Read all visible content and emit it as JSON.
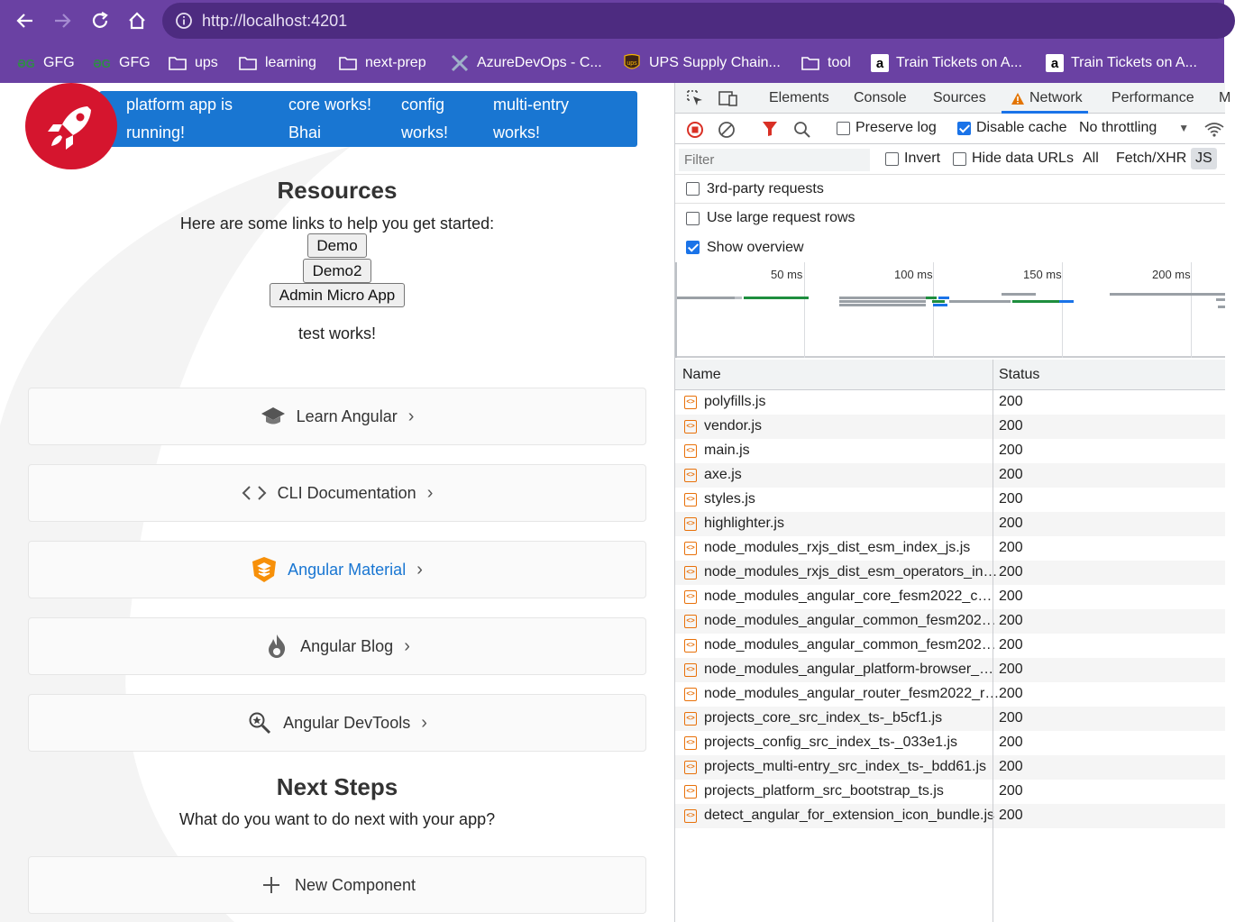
{
  "browser": {
    "url": "http://localhost:4201",
    "bookmarks": [
      {
        "label": "GFG",
        "icon": "gfg-icon"
      },
      {
        "label": "GFG",
        "icon": "gfg-icon"
      },
      {
        "label": "ups",
        "icon": "folder-icon"
      },
      {
        "label": "learning",
        "icon": "folder-icon"
      },
      {
        "label": "next-prep",
        "icon": "folder-icon"
      },
      {
        "label": "AzureDevOps - C...",
        "icon": "azure-devops-icon"
      },
      {
        "label": "UPS Supply Chain...",
        "icon": "ups-logo-icon"
      },
      {
        "label": "tool",
        "icon": "folder-icon"
      },
      {
        "label": "Train Tickets on A...",
        "icon": "amazon-icon"
      },
      {
        "label": "Train Tickets on A...",
        "icon": "amazon-icon"
      }
    ]
  },
  "page": {
    "banner": {
      "items": [
        {
          "line1": "platform app is",
          "line2": "running!"
        },
        {
          "line1": "core works!",
          "line2": "Bhai"
        },
        {
          "line1": "config",
          "line2": "works!"
        },
        {
          "line1": "multi-entry",
          "line2": "works!"
        }
      ]
    },
    "resources_title": "Resources",
    "resources_sub": "Here are some links to help you get started:",
    "buttons": {
      "demo": "Demo",
      "demo2": "Demo2",
      "admin": "Admin Micro App"
    },
    "test_works": "test works!",
    "cards": [
      {
        "label": "Learn Angular",
        "icon": "graduation-cap-icon"
      },
      {
        "label": "CLI Documentation",
        "icon": "code-brackets-icon"
      },
      {
        "label": "Angular Material",
        "icon": "angular-material-icon",
        "color": "#1976d2"
      },
      {
        "label": "Angular Blog",
        "icon": "flame-icon"
      },
      {
        "label": "Angular DevTools",
        "icon": "magnifier-icon"
      }
    ],
    "next_title": "Next Steps",
    "next_sub": "What do you want to do next with your app?",
    "new_component": "New Component",
    "colors": {
      "banner": "#1976d2",
      "rocket_badge": "#d5152e"
    }
  },
  "devtools": {
    "tabs": [
      "Elements",
      "Console",
      "Sources",
      "Network",
      "Performance",
      "M"
    ],
    "active_tab": "Network",
    "toolbar": {
      "preserve_log": "Preserve log",
      "disable_cache": "Disable cache",
      "throttling": "No throttling"
    },
    "filter": {
      "placeholder": "Filter",
      "invert": "Invert",
      "hide_data_urls": "Hide data URLs",
      "all": "All",
      "fetch_xhr": "Fetch/XHR",
      "js": "JS"
    },
    "options": {
      "third_party": "3rd-party requests",
      "large_rows": "Use large request rows",
      "show_overview": "Show overview"
    },
    "overview_labels": [
      "50 ms",
      "100 ms",
      "150 ms",
      "200 ms"
    ],
    "columns": {
      "name": "Name",
      "status": "Status"
    },
    "requests": [
      {
        "name": "polyfills.js",
        "status": "200"
      },
      {
        "name": "vendor.js",
        "status": "200"
      },
      {
        "name": "main.js",
        "status": "200"
      },
      {
        "name": "axe.js",
        "status": "200"
      },
      {
        "name": "styles.js",
        "status": "200"
      },
      {
        "name": "highlighter.js",
        "status": "200"
      },
      {
        "name": "node_modules_rxjs_dist_esm_index_js.js",
        "status": "200"
      },
      {
        "name": "node_modules_rxjs_dist_esm_operators_in…",
        "status": "200"
      },
      {
        "name": "node_modules_angular_core_fesm2022_c…",
        "status": "200"
      },
      {
        "name": "node_modules_angular_common_fesm202…",
        "status": "200"
      },
      {
        "name": "node_modules_angular_common_fesm202…",
        "status": "200"
      },
      {
        "name": "node_modules_angular_platform-browser_…",
        "status": "200"
      },
      {
        "name": "node_modules_angular_router_fesm2022_r…",
        "status": "200"
      },
      {
        "name": "projects_core_src_index_ts-_b5cf1.js",
        "status": "200"
      },
      {
        "name": "projects_config_src_index_ts-_033e1.js",
        "status": "200"
      },
      {
        "name": "projects_multi-entry_src_index_ts-_bdd61.js",
        "status": "200"
      },
      {
        "name": "projects_platform_src_bootstrap_ts.js",
        "status": "200"
      },
      {
        "name": "detect_angular_for_extension_icon_bundle.js",
        "status": "200"
      }
    ]
  }
}
